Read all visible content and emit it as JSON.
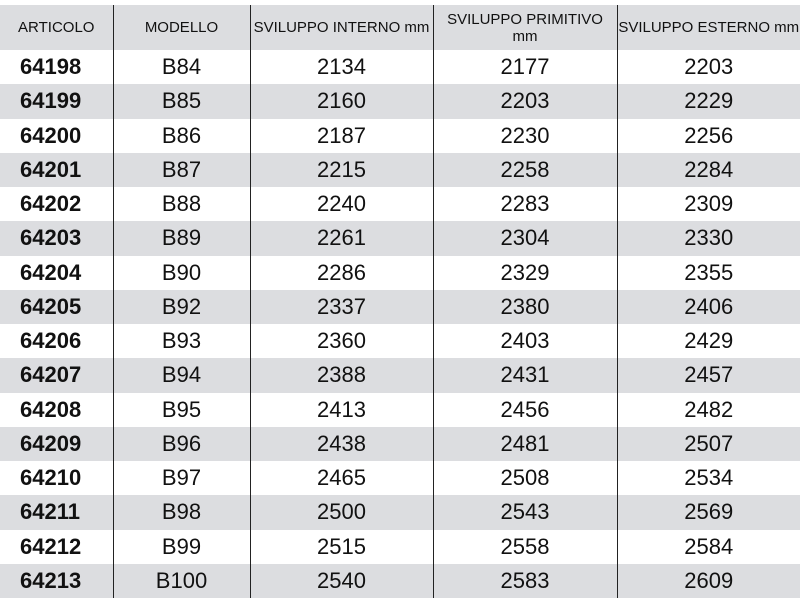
{
  "headers": [
    "ARTICOLO",
    "MODELLO",
    "SVILUPPO INTERNO mm",
    "SVILUPPO PRIMITIVO mm",
    "SVILUPPO ESTERNO mm"
  ],
  "rows": [
    [
      "64198",
      "B84",
      "2134",
      "2177",
      "2203"
    ],
    [
      "64199",
      "B85",
      "2160",
      "2203",
      "2229"
    ],
    [
      "64200",
      "B86",
      "2187",
      "2230",
      "2256"
    ],
    [
      "64201",
      "B87",
      "2215",
      "2258",
      "2284"
    ],
    [
      "64202",
      "B88",
      "2240",
      "2283",
      "2309"
    ],
    [
      "64203",
      "B89",
      "2261",
      "2304",
      "2330"
    ],
    [
      "64204",
      "B90",
      "2286",
      "2329",
      "2355"
    ],
    [
      "64205",
      "B92",
      "2337",
      "2380",
      "2406"
    ],
    [
      "64206",
      "B93",
      "2360",
      "2403",
      "2429"
    ],
    [
      "64207",
      "B94",
      "2388",
      "2431",
      "2457"
    ],
    [
      "64208",
      "B95",
      "2413",
      "2456",
      "2482"
    ],
    [
      "64209",
      "B96",
      "2438",
      "2481",
      "2507"
    ],
    [
      "64210",
      "B97",
      "2465",
      "2508",
      "2534"
    ],
    [
      "64211",
      "B98",
      "2500",
      "2543",
      "2569"
    ],
    [
      "64212",
      "B99",
      "2515",
      "2558",
      "2584"
    ],
    [
      "64213",
      "B100",
      "2540",
      "2583",
      "2609"
    ]
  ],
  "colors": {
    "stripe": "#dcdde0",
    "border": "#222222"
  }
}
